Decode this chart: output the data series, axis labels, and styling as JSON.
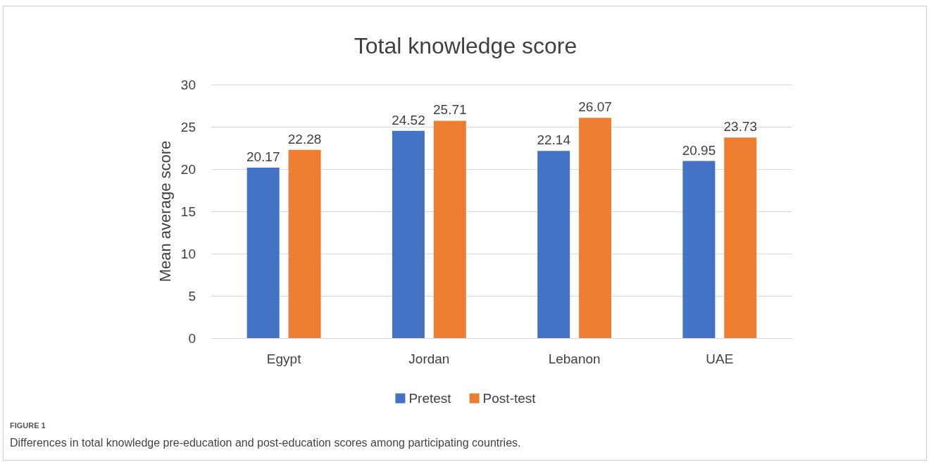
{
  "chart_data": {
    "type": "bar",
    "title": "Total knowledge score",
    "ylabel": "Mean average score",
    "categories": [
      "Egypt",
      "Jordan",
      "Lebanon",
      "UAE"
    ],
    "series": [
      {
        "name": "Pretest",
        "color": "#4472c4",
        "values": [
          20.17,
          24.52,
          22.14,
          20.95
        ]
      },
      {
        "name": "Post-test",
        "color": "#ed7d31",
        "values": [
          22.28,
          25.71,
          26.07,
          23.73
        ]
      }
    ],
    "ylim": [
      0,
      30
    ],
    "yticks": [
      0,
      5,
      10,
      15,
      20,
      25,
      30
    ],
    "grid": "y",
    "legend": "bottom",
    "data_labels": true,
    "annotations": [
      "FIGURE 1",
      "Differences in total knowledge pre-education and post-education scores among participating countries."
    ]
  }
}
